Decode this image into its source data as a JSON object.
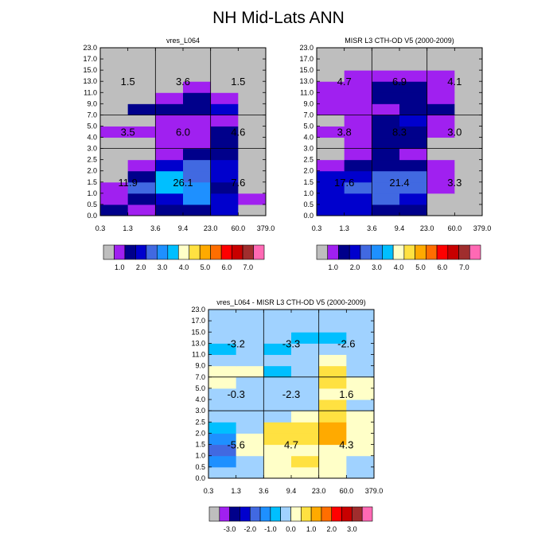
{
  "figure": {
    "title": "NH Mid-Lats ANN"
  },
  "palette": [
    "#bebebe",
    "#a020f0",
    "#00008b",
    "#0000cd",
    "#4169e1",
    "#1e90ff",
    "#00bfff",
    "#a0d2ff",
    "#ffffc8",
    "#ffe141",
    "#ffaa00",
    "#ff6e00",
    "#ff0000",
    "#c80000",
    "#a02d2d",
    "#ff69b4"
  ],
  "chart_data": [
    {
      "type": "heatmap",
      "title": "vres_L064",
      "x_ticks": [
        "0.3",
        "1.3",
        "3.6",
        "9.4",
        "23.0",
        "60.0",
        "379.0"
      ],
      "y_ticks": [
        "0.0",
        "0.5",
        "1.0",
        "1.5",
        "2.0",
        "2.5",
        "3.0",
        "4.0",
        "5.0",
        "7.0",
        "9.0",
        "11.0",
        "13.0",
        "15.0",
        "17.0",
        "23.0"
      ],
      "cell_colors_bottom_to_top": [
        [
          2,
          1,
          2,
          2,
          3,
          0
        ],
        [
          1,
          2,
          3,
          5,
          3,
          1
        ],
        [
          1,
          4,
          6,
          5,
          2,
          0
        ],
        [
          0,
          2,
          6,
          4,
          3,
          0
        ],
        [
          0,
          1,
          3,
          4,
          3,
          0
        ],
        [
          0,
          0,
          1,
          2,
          2,
          0
        ],
        [
          0,
          0,
          1,
          1,
          2,
          0
        ],
        [
          1,
          1,
          1,
          1,
          2,
          0
        ],
        [
          0,
          0,
          1,
          1,
          1,
          0
        ],
        [
          0,
          2,
          2,
          2,
          3,
          0
        ],
        [
          0,
          0,
          1,
          2,
          1,
          0
        ],
        [
          0,
          0,
          0,
          1,
          0,
          0
        ],
        [
          0,
          0,
          0,
          0,
          0,
          0
        ],
        [
          0,
          0,
          0,
          0,
          0,
          0
        ],
        [
          0,
          0,
          0,
          0,
          0,
          0
        ]
      ],
      "region_totals": [
        {
          "col": 0,
          "row": 2,
          "label": "1.5"
        },
        {
          "col": 1,
          "row": 2,
          "label": "3.6"
        },
        {
          "col": 2,
          "row": 2,
          "label": "1.5"
        },
        {
          "col": 0,
          "row": 1,
          "label": "3.5"
        },
        {
          "col": 1,
          "row": 1,
          "label": "6.0"
        },
        {
          "col": 2,
          "row": 1,
          "label": "4.6"
        },
        {
          "col": 0,
          "row": 0,
          "label": "11.9"
        },
        {
          "col": 1,
          "row": 0,
          "label": "26.1"
        },
        {
          "col": 2,
          "row": 0,
          "label": "7.6"
        }
      ],
      "colorbar": {
        "labels": [
          "1.0",
          "2.0",
          "3.0",
          "4.0",
          "5.0",
          "6.0",
          "7.0"
        ],
        "colors": [
          0,
          1,
          2,
          3,
          4,
          5,
          6,
          8,
          9,
          10,
          11,
          12,
          13,
          14,
          15
        ]
      }
    },
    {
      "type": "heatmap",
      "title": "MISR L3 CTH-OD V5 (2000-2009)",
      "x_ticks": [
        "0.3",
        "1.3",
        "3.6",
        "9.4",
        "23.0",
        "60.0",
        "379.0"
      ],
      "y_ticks": [
        "0.0",
        "0.5",
        "1.0",
        "1.5",
        "2.0",
        "2.5",
        "3.0",
        "4.0",
        "5.0",
        "7.0",
        "9.0",
        "11.0",
        "13.0",
        "15.0",
        "17.0",
        "23.0"
      ],
      "cell_colors_bottom_to_top": [
        [
          3,
          3,
          2,
          2,
          0,
          0
        ],
        [
          3,
          3,
          4,
          3,
          0,
          0
        ],
        [
          3,
          4,
          4,
          4,
          1,
          0
        ],
        [
          3,
          3,
          4,
          4,
          1,
          0
        ],
        [
          1,
          2,
          2,
          2,
          1,
          0
        ],
        [
          0,
          1,
          2,
          1,
          0,
          0
        ],
        [
          0,
          1,
          2,
          2,
          0,
          0
        ],
        [
          1,
          1,
          2,
          2,
          1,
          0
        ],
        [
          0,
          1,
          2,
          3,
          1,
          0
        ],
        [
          1,
          1,
          1,
          2,
          2,
          0
        ],
        [
          1,
          1,
          2,
          2,
          1,
          0
        ],
        [
          1,
          1,
          2,
          2,
          1,
          0
        ],
        [
          0,
          1,
          1,
          1,
          1,
          0
        ],
        [
          0,
          0,
          0,
          0,
          0,
          0
        ],
        [
          0,
          0,
          0,
          0,
          0,
          0
        ]
      ],
      "region_totals": [
        {
          "col": 0,
          "row": 2,
          "label": "4.7"
        },
        {
          "col": 1,
          "row": 2,
          "label": "6.9"
        },
        {
          "col": 2,
          "row": 2,
          "label": "4.1"
        },
        {
          "col": 0,
          "row": 1,
          "label": "3.8"
        },
        {
          "col": 1,
          "row": 1,
          "label": "8.3"
        },
        {
          "col": 2,
          "row": 1,
          "label": "3.0"
        },
        {
          "col": 0,
          "row": 0,
          "label": "17.6"
        },
        {
          "col": 1,
          "row": 0,
          "label": "21.4"
        },
        {
          "col": 2,
          "row": 0,
          "label": "3.3"
        }
      ],
      "colorbar": {
        "labels": [
          "1.0",
          "2.0",
          "3.0",
          "4.0",
          "5.0",
          "6.0",
          "7.0"
        ],
        "colors": [
          0,
          1,
          2,
          3,
          4,
          5,
          6,
          8,
          9,
          10,
          11,
          12,
          13,
          14,
          15
        ]
      }
    },
    {
      "type": "heatmap",
      "title": "vres_L064 - MISR L3 CTH-OD V5 (2000-2009)",
      "x_ticks": [
        "0.3",
        "1.3",
        "3.6",
        "9.4",
        "23.0",
        "60.0",
        "379.0"
      ],
      "y_ticks": [
        "0.0",
        "0.5",
        "1.0",
        "1.5",
        "2.0",
        "2.5",
        "3.0",
        "4.0",
        "5.0",
        "7.0",
        "9.0",
        "11.0",
        "13.0",
        "15.0",
        "17.0",
        "23.0"
      ],
      "cell_colors_bottom_to_top": [
        [
          7,
          7,
          8,
          8,
          8,
          7
        ],
        [
          5,
          7,
          8,
          9,
          8,
          7
        ],
        [
          4,
          8,
          8,
          8,
          8,
          8
        ],
        [
          5,
          8,
          9,
          9,
          10,
          8
        ],
        [
          6,
          7,
          9,
          9,
          10,
          8
        ],
        [
          7,
          7,
          7,
          8,
          9,
          8
        ],
        [
          7,
          7,
          7,
          7,
          9,
          7
        ],
        [
          7,
          7,
          7,
          7,
          8,
          8
        ],
        [
          8,
          7,
          7,
          7,
          9,
          8
        ],
        [
          8,
          8,
          6,
          7,
          9,
          7
        ],
        [
          7,
          7,
          7,
          7,
          8,
          7
        ],
        [
          6,
          7,
          6,
          7,
          7,
          7
        ],
        [
          7,
          7,
          7,
          6,
          6,
          7
        ],
        [
          7,
          7,
          7,
          7,
          7,
          7
        ],
        [
          7,
          7,
          7,
          7,
          7,
          7
        ]
      ],
      "region_totals": [
        {
          "col": 0,
          "row": 2,
          "label": "-3.2"
        },
        {
          "col": 1,
          "row": 2,
          "label": "-3.3"
        },
        {
          "col": 2,
          "row": 2,
          "label": "-2.6"
        },
        {
          "col": 0,
          "row": 1,
          "label": "-0.3"
        },
        {
          "col": 1,
          "row": 1,
          "label": "-2.3"
        },
        {
          "col": 2,
          "row": 1,
          "label": "1.6"
        },
        {
          "col": 0,
          "row": 0,
          "label": "-5.6"
        },
        {
          "col": 1,
          "row": 0,
          "label": "4.7"
        },
        {
          "col": 2,
          "row": 0,
          "label": "4.3"
        }
      ],
      "colorbar": {
        "labels": [
          "-3.0",
          "-2.0",
          "-1.0",
          "0.0",
          "1.0",
          "2.0",
          "3.0"
        ],
        "colors": [
          0,
          1,
          2,
          3,
          4,
          5,
          6,
          7,
          8,
          9,
          10,
          11,
          12,
          13,
          14,
          15
        ]
      }
    }
  ]
}
